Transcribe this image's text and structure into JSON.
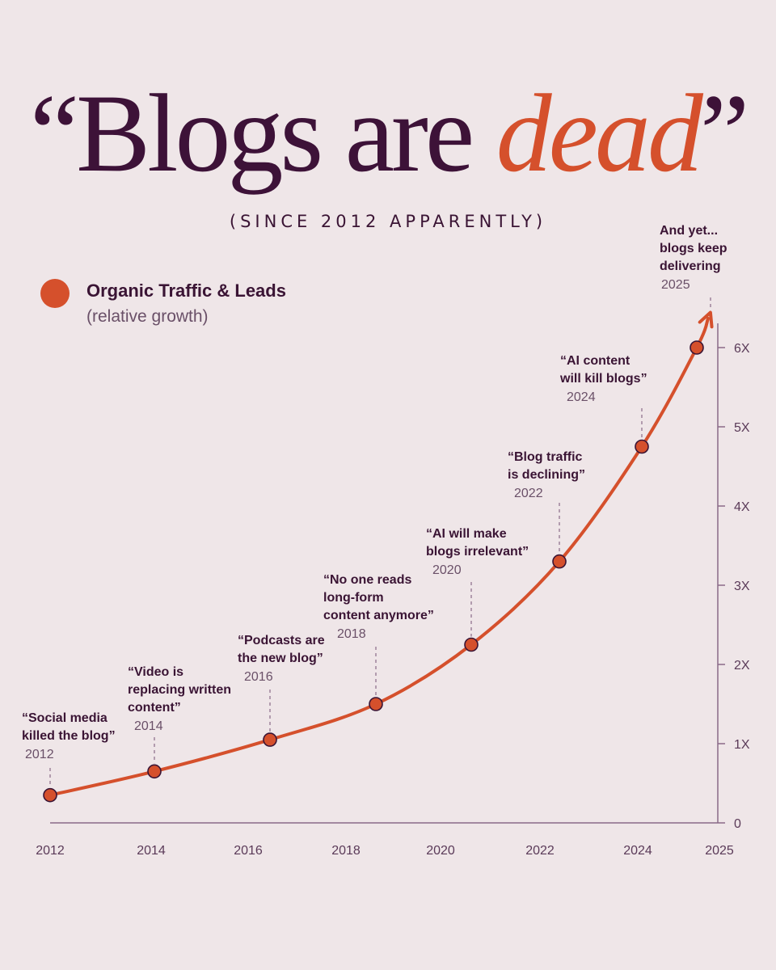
{
  "header": {
    "title_open_quote": "“",
    "title_main": "Blogs are ",
    "title_accent": "dead",
    "title_close_quote": "”",
    "subtitle": "(SINCE 2012 APPARENTLY)"
  },
  "legend": {
    "label": "Organic Traffic & Leads",
    "sub": "(relative growth)"
  },
  "colors": {
    "background": "#efe6e8",
    "text": "#3a1434",
    "accent": "#d5502c",
    "axis": "#8a6a88"
  },
  "chart_data": {
    "type": "line",
    "x_ticks": [
      "2012",
      "2014",
      "2016",
      "2018",
      "2020",
      "2022",
      "2024",
      "2025"
    ],
    "y_ticks": [
      "0",
      "1X",
      "2X",
      "3X",
      "4X",
      "5X",
      "6X"
    ],
    "ylim": [
      0,
      6
    ],
    "y_axis_position": "right",
    "grid": false,
    "points": [
      {
        "year": 2012,
        "value": 0.35,
        "quote": [
          "“Social media",
          "killed the blog”"
        ],
        "year_label": "2012"
      },
      {
        "year": 2014,
        "value": 0.65,
        "quote": [
          "“Video is",
          "replacing written",
          "content”"
        ],
        "year_label": "2014"
      },
      {
        "year": 2016,
        "value": 1.05,
        "quote": [
          "“Podcasts are",
          "the new blog”"
        ],
        "year_label": "2016"
      },
      {
        "year": 2018,
        "value": 1.5,
        "quote": [
          "“No one reads",
          "long-form",
          "content anymore”"
        ],
        "year_label": "2018"
      },
      {
        "year": 2020,
        "value": 2.25,
        "quote": [
          "“AI will make",
          "blogs irrelevant”"
        ],
        "year_label": "2020"
      },
      {
        "year": 2022,
        "value": 3.3,
        "quote": [
          "“Blog traffic",
          "is declining”"
        ],
        "year_label": "2022"
      },
      {
        "year": 2024,
        "value": 4.75,
        "quote": [
          "“AI content",
          "will kill blogs”"
        ],
        "year_label": "2024"
      },
      {
        "year": 2025,
        "value": 6.0,
        "quote": [
          "And yet...",
          "blogs keep",
          "delivering"
        ],
        "year_label": "2025"
      }
    ]
  }
}
